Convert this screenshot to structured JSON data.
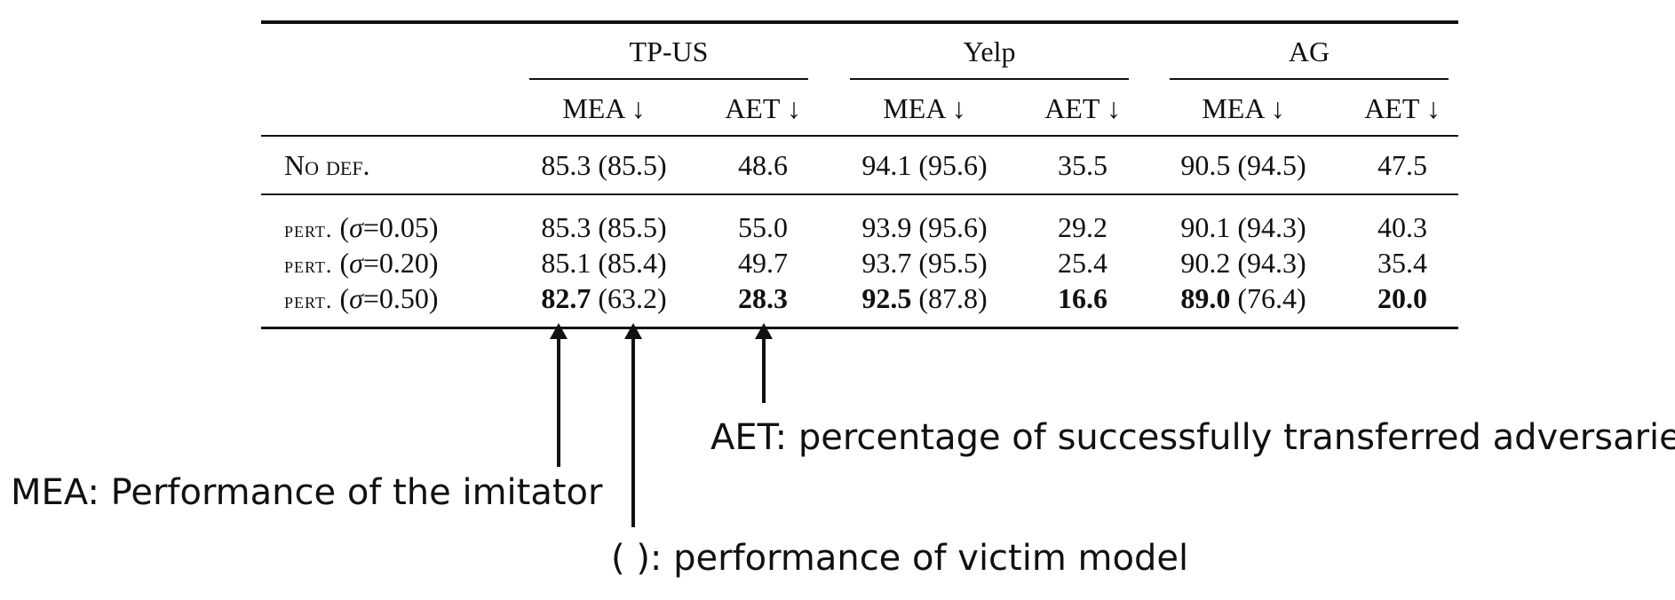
{
  "table": {
    "groups": [
      "TP-US",
      "Yelp",
      "AG"
    ],
    "subheaders": [
      "MEA ↓",
      "AET ↓",
      "MEA ↓",
      "AET ↓",
      "MEA ↓",
      "AET ↓"
    ],
    "rows": [
      {
        "label": "No def.",
        "cells": [
          {
            "bold": "",
            "rest": "85.3 (85.5)"
          },
          {
            "bold": "",
            "rest": "48.6"
          },
          {
            "bold": "",
            "rest": "94.1 (95.6)"
          },
          {
            "bold": "",
            "rest": "35.5"
          },
          {
            "bold": "",
            "rest": "90.5 (94.5)"
          },
          {
            "bold": "",
            "rest": "47.5"
          }
        ]
      },
      {
        "label_prefix": "pert.",
        "sigma": "σ",
        "label_value": "=0.05)",
        "cells": [
          {
            "bold": "",
            "rest": "85.3 (85.5)"
          },
          {
            "bold": "",
            "rest": "55.0"
          },
          {
            "bold": "",
            "rest": "93.9 (95.6)"
          },
          {
            "bold": "",
            "rest": "29.2"
          },
          {
            "bold": "",
            "rest": "90.1 (94.3)"
          },
          {
            "bold": "",
            "rest": "40.3"
          }
        ]
      },
      {
        "label_prefix": "pert.",
        "sigma": "σ",
        "label_value": "=0.20)",
        "cells": [
          {
            "bold": "",
            "rest": "85.1 (85.4)"
          },
          {
            "bold": "",
            "rest": "49.7"
          },
          {
            "bold": "",
            "rest": "93.7 (95.5)"
          },
          {
            "bold": "",
            "rest": "25.4"
          },
          {
            "bold": "",
            "rest": "90.2 (94.3)"
          },
          {
            "bold": "",
            "rest": "35.4"
          }
        ]
      },
      {
        "label_prefix": "pert.",
        "sigma": "σ",
        "label_value": "=0.50)",
        "cells": [
          {
            "bold": "82.7",
            "rest": " (63.2)"
          },
          {
            "bold": "28.3",
            "rest": ""
          },
          {
            "bold": "92.5",
            "rest": " (87.8)"
          },
          {
            "bold": "16.6",
            "rest": ""
          },
          {
            "bold": "89.0",
            "rest": " (76.4)"
          },
          {
            "bold": "20.0",
            "rest": ""
          }
        ]
      }
    ]
  },
  "annotations": {
    "aet": "AET: percentage of successfully transferred adversaries",
    "mea": "MEA: Performance of the imitator",
    "paren": "( ): performance of victim model"
  }
}
